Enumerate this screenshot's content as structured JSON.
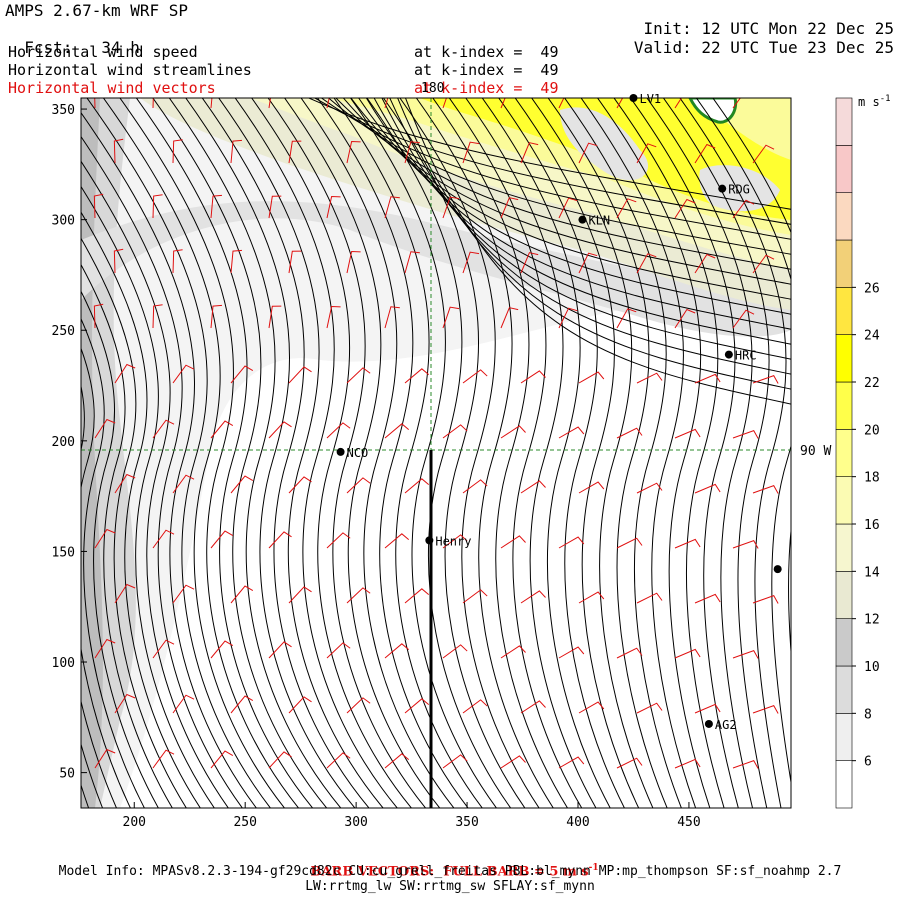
{
  "header": {
    "model": "AMPS 2.67-km WRF SP",
    "fcst_label": "Fcst:",
    "fcst_value": "34 h",
    "init_label": "Init:",
    "init_value": "12 UTC Mon 22 Dec 25",
    "valid_label": "Valid:",
    "valid_value": "22 UTC Tue 23 Dec 25"
  },
  "fields": [
    {
      "name": "Horizontal wind speed",
      "level": "at k-index =  49",
      "color": "#000000"
    },
    {
      "name": "Horizontal wind streamlines",
      "level": "at k-index =  49",
      "color": "#000000"
    },
    {
      "name": "Horizontal wind vectors",
      "level": "at k-index =  49",
      "color": "#e01010"
    }
  ],
  "axes": {
    "x_ticks": [
      "200",
      "250",
      "300",
      "350",
      "400",
      "450"
    ],
    "y_ticks": [
      "50",
      "100",
      "150",
      "200",
      "250",
      "300",
      "350"
    ],
    "top_label": "180",
    "right_label": "90 W"
  },
  "stations": [
    {
      "id": "NCO",
      "x": 293,
      "y": 195
    },
    {
      "id": "Henry",
      "x": 333,
      "y": 155
    },
    {
      "id": "KLN",
      "x": 402,
      "y": 300
    },
    {
      "id": "RDG",
      "x": 465,
      "y": 314
    },
    {
      "id": "HRC",
      "x": 468,
      "y": 239
    },
    {
      "id": "AG2",
      "x": 459,
      "y": 72
    },
    {
      "id": "LV1",
      "x": 425,
      "y": 355
    },
    {
      "id": "",
      "x": 490,
      "y": 142
    }
  ],
  "colorbar": {
    "unit": "m s",
    "unit_exp": "-1",
    "labels": [
      "6",
      "8",
      "10",
      "12",
      "14",
      "16",
      "18",
      "20",
      "22",
      "24",
      "26"
    ],
    "colors": [
      "#ffffff",
      "#efefef",
      "#dcdcdc",
      "#cacaca",
      "#e9e9d2",
      "#f6f6cf",
      "#fbfbb3",
      "#ffff8c",
      "#ffff4a",
      "#ffff00",
      "#ffe640",
      "#f2d078",
      "#fbd9c0",
      "#f8c8c8",
      "#f5dada"
    ]
  },
  "footer": {
    "barb": "BARB VECTORS:  FULL BARB = 5 m s",
    "barb_exp": "-1",
    "model_info": "Model Info: MPASv8.2.3-194-gf29cd82c CU:cu_grell_freitas PBL:bl_mynn MP:mp_thompson SF:sf_noahmp 2.7",
    "model_info2": "LW:rrtmg_lw SW:rrtmg_sw SFLAY:sf_mynn"
  }
}
